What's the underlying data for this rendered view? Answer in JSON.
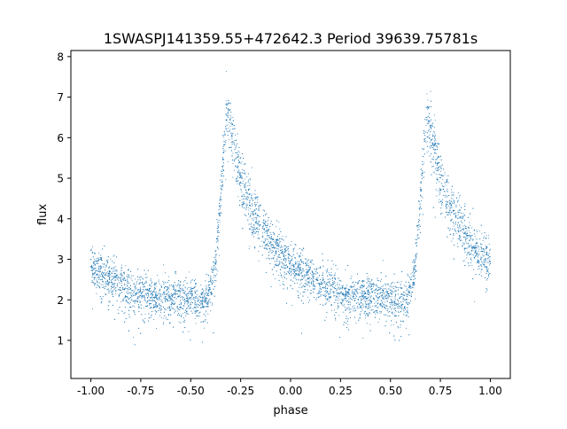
{
  "chart_data": {
    "type": "scatter",
    "title": "1SWASPJ141359.55+472642.3 Period 39639.75781s",
    "xlabel": "phase",
    "ylabel": "flux",
    "xlim": [
      -1.1,
      1.1
    ],
    "ylim": [
      0.06,
      8.15
    ],
    "xticks": [
      "-1.00",
      "-0.75",
      "-0.50",
      "-0.25",
      "0.00",
      "0.25",
      "0.50",
      "0.75",
      "1.00"
    ],
    "xtick_values": [
      -1,
      -0.75,
      -0.5,
      -0.25,
      0,
      0.25,
      0.5,
      0.75,
      1
    ],
    "yticks": [
      "1",
      "2",
      "3",
      "4",
      "5",
      "6",
      "7",
      "8"
    ],
    "ytick_values": [
      1,
      2,
      3,
      4,
      5,
      6,
      7,
      8
    ],
    "grid": false,
    "marker_color": "#1f77b4",
    "scatter_spread": 0.25,
    "mean_profile": {
      "phase": [
        -1.0,
        -0.9,
        -0.8,
        -0.7,
        -0.6,
        -0.5,
        -0.42,
        -0.38,
        -0.35,
        -0.32,
        -0.3,
        -0.25,
        -0.2,
        -0.15,
        -0.1,
        -0.05,
        0.0,
        0.1,
        0.2,
        0.3,
        0.4,
        0.5,
        0.58,
        0.62,
        0.65,
        0.68,
        0.7,
        0.75,
        0.8,
        0.85,
        0.9,
        0.95,
        1.0
      ],
      "flux": [
        2.8,
        2.5,
        2.2,
        2.1,
        2.05,
        2.0,
        1.95,
        2.6,
        4.5,
        6.6,
        6.2,
        5.0,
        4.3,
        3.8,
        3.4,
        3.1,
        2.9,
        2.5,
        2.25,
        2.1,
        2.05,
        2.0,
        1.95,
        2.6,
        4.5,
        6.6,
        6.2,
        5.0,
        4.3,
        3.8,
        3.4,
        3.1,
        2.9
      ]
    }
  }
}
